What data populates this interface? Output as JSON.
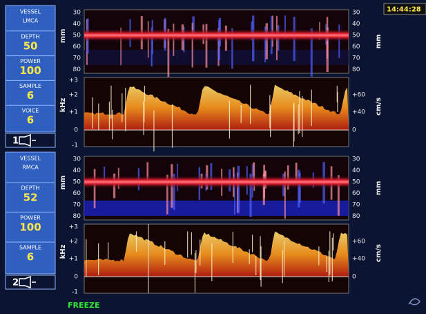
{
  "time": "14:44:28",
  "status": "FREEZE",
  "channels": [
    {
      "number": "1",
      "fields": [
        {
          "label": "VESSEL",
          "value": "LMCA"
        },
        {
          "label": "DEPTH",
          "value": "50"
        },
        {
          "label": "POWER",
          "value": "100"
        },
        {
          "label": "SAMPLE",
          "value": "6"
        },
        {
          "label": "VOICE",
          "value": "6"
        }
      ],
      "mmode": {
        "unit_left": "mm",
        "unit_right": "mm",
        "ticks": [
          "30",
          "40",
          "50",
          "60",
          "70",
          "80"
        ]
      },
      "spectrum": {
        "unit_left": "kHz",
        "unit_right": "cm/s",
        "ticks_left": [
          "+3",
          "+2",
          "+1",
          "0",
          "-1"
        ],
        "ticks_right": [
          "+60",
          "+40",
          "0"
        ]
      }
    },
    {
      "number": "2",
      "fields": [
        {
          "label": "VESSEL",
          "value": "RMCA"
        },
        {
          "label": "DEPTH",
          "value": "52"
        },
        {
          "label": "POWER",
          "value": "100"
        },
        {
          "label": "SAMPLE",
          "value": "6"
        }
      ],
      "mmode": {
        "unit_left": "mm",
        "unit_right": "mm",
        "ticks": [
          "30",
          "40",
          "50",
          "60",
          "70",
          "80"
        ]
      },
      "spectrum": {
        "unit_left": "kHz",
        "unit_right": "cm/s",
        "ticks_left": [
          "+3",
          "+2",
          "+1",
          "0",
          "-1"
        ],
        "ticks_right": [
          "+60",
          "+40",
          "0"
        ]
      }
    }
  ]
}
